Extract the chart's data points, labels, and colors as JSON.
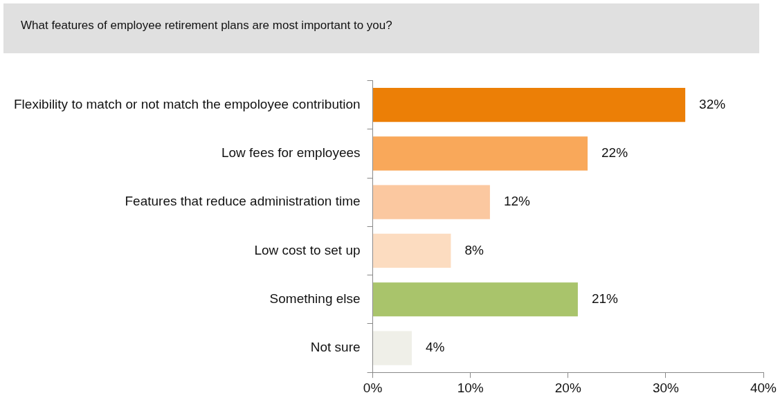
{
  "chart_data": {
    "type": "bar",
    "orientation": "horizontal",
    "title": "What features of employee retirement plans are most important to you?",
    "categories": [
      "Flexibility to match or not match the empoloyee contribution",
      "Low fees for employees",
      "Features that reduce administration time",
      "Low cost to set up",
      "Something else",
      "Not sure"
    ],
    "values": [
      32,
      22,
      12,
      8,
      21,
      4
    ],
    "colors": [
      "#ec7f06",
      "#f9a85a",
      "#fbc8a0",
      "#fcdcc0",
      "#a9c46b",
      "#efefe8"
    ],
    "value_labels": [
      "32%",
      "22%",
      "12%",
      "8%",
      "21%",
      "4%"
    ],
    "xlim": [
      0,
      40
    ],
    "xticks": [
      {
        "value": 0,
        "label": "0%"
      },
      {
        "value": 10,
        "label": "10%"
      },
      {
        "value": 20,
        "label": "20%"
      },
      {
        "value": 30,
        "label": "30%"
      },
      {
        "value": 40,
        "label": "40%"
      }
    ],
    "grid": false
  }
}
